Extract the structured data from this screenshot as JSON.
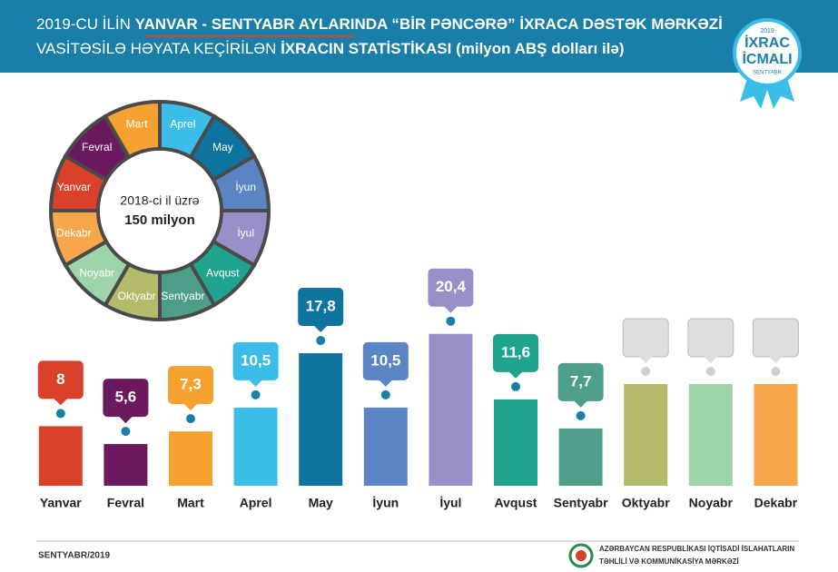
{
  "chart_data": {
    "type": "bar",
    "title_line1": [
      "2019-CU İLİN ",
      "YANVAR - SENTYABR AYLARINDA “BİR PƏNCƏRƏ” İXRACA DƏSTƏK MƏRKƏZİ"
    ],
    "title_line2": [
      "VASİTƏSİLƏ HƏYATA KEÇİRİLƏN ",
      "İXRACIN STATİSTİKASI",
      " (milyon ABŞ dolları ilə)"
    ],
    "badge": {
      "year": "2019",
      "line1": "İXRAC",
      "line2": "İCMALI",
      "month": "SENTYABR"
    },
    "categories": [
      "Yanvar",
      "Fevral",
      "Mart",
      "Aprel",
      "May",
      "İyun",
      "İyul",
      "Avqust",
      "Sentyabr",
      "Oktyabr",
      "Noyabr",
      "Dekabr"
    ],
    "values": [
      8,
      5.6,
      7.3,
      10.5,
      17.8,
      10.5,
      20.4,
      11.6,
      7.7,
      null,
      null,
      null
    ],
    "value_labels": [
      "8",
      "5,6",
      "7,3",
      "10,5",
      "17,8",
      "10,5",
      "20,4",
      "11,6",
      "7,7",
      null,
      null,
      null
    ],
    "colors": [
      "#d9412b",
      "#6b1a5f",
      "#f5a231",
      "#3bbde8",
      "#0f73a0",
      "#5b84c4",
      "#9b8fc9",
      "#1fa58e",
      "#4d9e8a",
      "#b4ba6a",
      "#9dd4a9",
      "#f6a74a"
    ],
    "donut_annotation": "2018-ci il üzrə",
    "donut_annotation_value": "150 milyon",
    "footer_date": "SENTYABR/2019",
    "footer_org_line1": "AZƏRBAYCAN RESPUBLİKASI İQTİSADİ İSLAHATLARIN",
    "footer_org_line2": "TƏHLİLİ VƏ KOMMUNİKASİYA MƏRKƏZİ"
  }
}
